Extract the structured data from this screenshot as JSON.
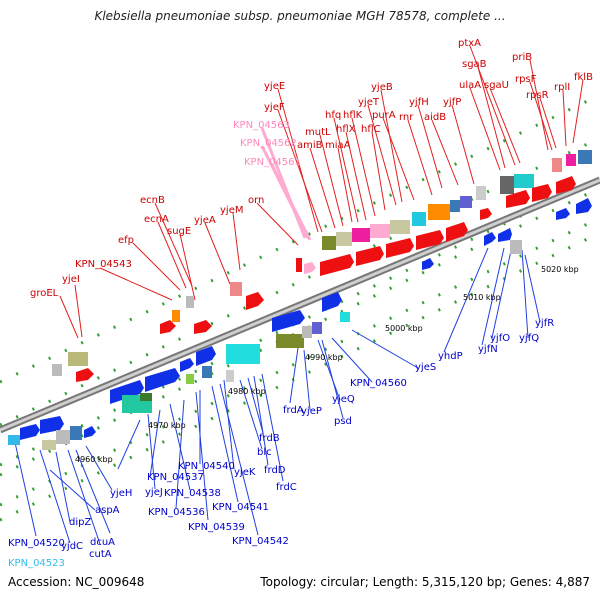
{
  "title": "Klebsiella pneumoniae subsp. pneumoniae MGH 78578, complete ...",
  "footer": {
    "accession": "Accession: NC_009648",
    "stats": "Topology: circular; Length: 5,315,120 bp; Genes: 4,887"
  },
  "colors": {
    "forward_label": "#cc0000",
    "reverse_label": "#0000cc",
    "rna_label": "#ff88bb",
    "pseudo_label": "#33bbee",
    "backbone": "#999999",
    "tick": "#2e8b2e"
  },
  "tick_labels": [
    "4960 kbp",
    "4970 kbp",
    "4980 kbp",
    "4990 kbp",
    "5000 kbp",
    "5010 kbp",
    "5020 kbp"
  ],
  "forward_labels": [
    "groEL",
    "yjeI",
    "KPN_04543",
    "efp",
    "ecnA",
    "ecnB",
    "sugE",
    "yjeA",
    "yjeM",
    "orn",
    "yjeE",
    "yjeF",
    "amiB",
    "mutL",
    "miaA",
    "hfq",
    "hflX",
    "hflK",
    "hflC",
    "yjeT",
    "yjeB",
    "purA",
    "rnr",
    "yjfH",
    "aidB",
    "yjfP",
    "ulaA",
    "sgaB",
    "ptxA",
    "sgaU",
    "priB",
    "rpsF",
    "rpsR",
    "rplI",
    "fklB"
  ],
  "rna_labels": [
    "KPN_04563",
    "KPN_04562",
    "KPN_04561"
  ],
  "reverse_labels": [
    "KPN_04520",
    "KPN_04523",
    "yjdC",
    "dipZ",
    "cutA",
    "dcuA",
    "aspA",
    "yjeH",
    "yjeJ",
    "KPN_04537",
    "KPN_04538",
    "KPN_04536",
    "KPN_04540",
    "KPN_04539",
    "KPN_04541",
    "KPN_04542",
    "yjeK",
    "blc",
    "frdB",
    "frdD",
    "frdC",
    "frdA",
    "yjeP",
    "yjeQ",
    "psd",
    "KPN_04560",
    "yjeS",
    "yhdP",
    "yjfN",
    "yjfO",
    "yjfQ",
    "yjfR"
  ]
}
